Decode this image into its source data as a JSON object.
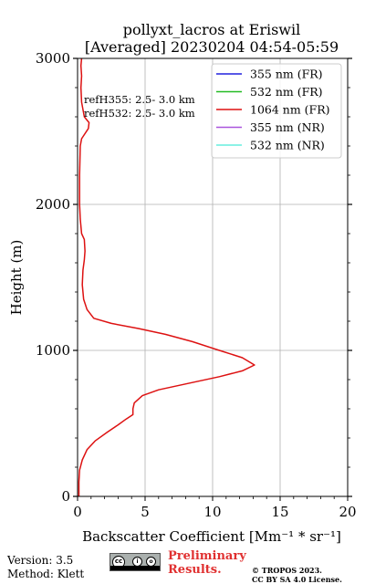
{
  "chart_data": {
    "type": "line",
    "title": "pollyxt_lacros at Eriswil",
    "subtitle": "[Averaged] 20230204 04:54-05:59",
    "xlabel": "Backscatter Coefficient [Mm⁻¹ * sr⁻¹]",
    "ylabel": "Height (m)",
    "xlim": [
      0,
      20
    ],
    "ylim": [
      0,
      3000
    ],
    "xticks": [
      "0",
      "5",
      "10",
      "15",
      "20"
    ],
    "yticks": [
      "0",
      "1000",
      "2000",
      "3000"
    ],
    "grid": true,
    "legend_position": "top-right",
    "legend": [
      {
        "label": "355 nm (FR)",
        "color": "#2020dd"
      },
      {
        "label": "532 nm (FR)",
        "color": "#22bb22"
      },
      {
        "label": "1064 nm (FR)",
        "color": "#dd1111"
      },
      {
        "label": "355 nm (NR)",
        "color": "#aa55dd"
      },
      {
        "label": "532 nm (NR)",
        "color": "#66eedd"
      }
    ],
    "annotations": [
      "refH355:  2.5- 3.0 km",
      "refH532:  2.5- 3.0 km"
    ],
    "series": [
      {
        "name": "1064 nm (FR)",
        "color": "#dd1111",
        "points": [
          [
            0.1,
            0
          ],
          [
            0.1,
            100
          ],
          [
            0.15,
            180
          ],
          [
            0.35,
            250
          ],
          [
            0.7,
            320
          ],
          [
            1.3,
            380
          ],
          [
            2.2,
            440
          ],
          [
            3.0,
            490
          ],
          [
            3.6,
            530
          ],
          [
            4.1,
            560
          ],
          [
            4.1,
            600
          ],
          [
            4.2,
            640
          ],
          [
            4.8,
            690
          ],
          [
            6.0,
            730
          ],
          [
            8.5,
            780
          ],
          [
            10.5,
            820
          ],
          [
            12.2,
            860
          ],
          [
            13.1,
            900
          ],
          [
            12.2,
            950
          ],
          [
            10.5,
            1000
          ],
          [
            8.5,
            1060
          ],
          [
            6.5,
            1110
          ],
          [
            4.5,
            1150
          ],
          [
            2.5,
            1185
          ],
          [
            1.2,
            1220
          ],
          [
            0.7,
            1280
          ],
          [
            0.45,
            1350
          ],
          [
            0.35,
            1450
          ],
          [
            0.4,
            1550
          ],
          [
            0.5,
            1620
          ],
          [
            0.55,
            1680
          ],
          [
            0.5,
            1760
          ],
          [
            0.3,
            1800
          ],
          [
            0.2,
            1900
          ],
          [
            0.15,
            2000
          ],
          [
            0.15,
            2200
          ],
          [
            0.2,
            2400
          ],
          [
            0.3,
            2450
          ],
          [
            0.8,
            2520
          ],
          [
            0.85,
            2560
          ],
          [
            0.5,
            2600
          ],
          [
            0.3,
            2700
          ],
          [
            0.25,
            2800
          ],
          [
            0.3,
            2880
          ],
          [
            0.25,
            2950
          ],
          [
            0.3,
            3000
          ]
        ]
      }
    ]
  },
  "footer": {
    "version": "Version: 3.5",
    "method": "Method: Klett",
    "preliminary_line1": "Preliminary",
    "preliminary_line2": "Results.",
    "copyright_line1": "© TROPOS 2023.",
    "copyright_line2": "CC BY SA 4.0 License."
  }
}
